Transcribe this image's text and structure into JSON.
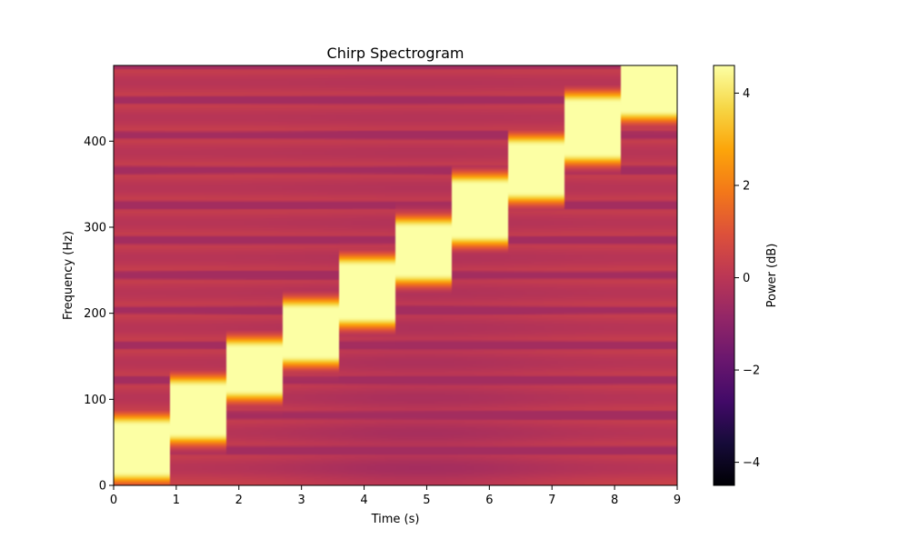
{
  "chart_data": {
    "type": "heatmap",
    "title": "Chirp Spectrogram",
    "xlabel": "Time (s)",
    "ylabel": "Frequency (Hz)",
    "xlim": [
      0,
      9
    ],
    "ylim": [
      0,
      488
    ],
    "x_ticks": [
      0,
      1,
      2,
      3,
      4,
      5,
      6,
      7,
      8,
      9
    ],
    "y_ticks": [
      0,
      100,
      200,
      300,
      400
    ],
    "colorbar": {
      "label": "Power (dB)",
      "range": [
        -4.5,
        4.6
      ],
      "ticks": [
        -4,
        -2,
        0,
        2,
        4
      ],
      "colormap": "inferno"
    },
    "grid": false,
    "time_step_s": 0.9,
    "frequency_step_hz": 40.7,
    "chirp_segments": [
      {
        "t_start": 0.0,
        "t_end": 0.9,
        "f_low": 20,
        "f_high": 65
      },
      {
        "t_start": 0.9,
        "t_end": 1.8,
        "f_low": 65,
        "f_high": 110
      },
      {
        "t_start": 1.8,
        "t_end": 2.7,
        "f_low": 115,
        "f_high": 155
      },
      {
        "t_start": 2.7,
        "t_end": 3.6,
        "f_low": 155,
        "f_high": 200
      },
      {
        "t_start": 3.6,
        "t_end": 4.5,
        "f_low": 200,
        "f_high": 250
      },
      {
        "t_start": 4.5,
        "t_end": 5.4,
        "f_low": 250,
        "f_high": 295
      },
      {
        "t_start": 5.4,
        "t_end": 6.3,
        "f_low": 295,
        "f_high": 345
      },
      {
        "t_start": 6.3,
        "t_end": 7.2,
        "f_low": 345,
        "f_high": 390
      },
      {
        "t_start": 7.2,
        "t_end": 8.1,
        "f_low": 390,
        "f_high": 440
      },
      {
        "t_start": 8.1,
        "t_end": 9.0,
        "f_low": 440,
        "f_high": 488
      }
    ]
  }
}
